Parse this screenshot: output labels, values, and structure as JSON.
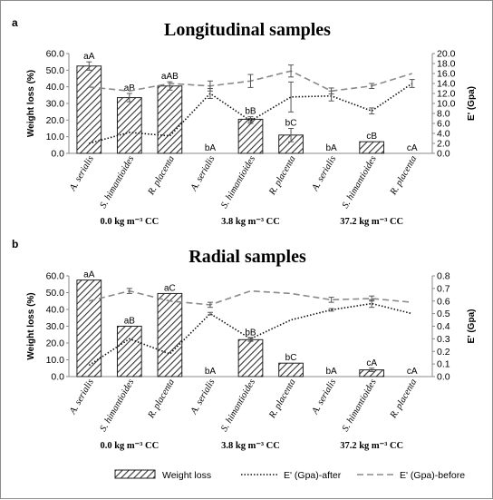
{
  "chart_data": [
    {
      "type": "bar",
      "panel_label": "a",
      "title": "Longitudinal samples",
      "ylabel": "Weight loss (%)",
      "y2label": "E' (Gpa)",
      "ylim": [
        0,
        60
      ],
      "yticks": [
        "0.0",
        "10.0",
        "20.0",
        "30.0",
        "40.0",
        "50.0",
        "60.0"
      ],
      "y2lim": [
        0,
        20
      ],
      "y2ticks": [
        "0.0",
        "2.0",
        "4.0",
        "6.0",
        "8.0",
        "10.0",
        "12.0",
        "14.0",
        "16.0",
        "18.0",
        "20.0"
      ],
      "categories": [
        "A. serialis",
        "S. himantioides",
        "R. placenta",
        "A. serialis",
        "S. himantioides",
        "R. placenta",
        "A. serialis",
        "S. himantioides",
        "R. placenta"
      ],
      "groups": [
        "0.0 kg m⁻³ CC",
        "3.8 kg m⁻³  CC",
        "37.2 kg m⁻³ CC"
      ],
      "series": [
        {
          "name": "Weight loss",
          "kind": "bar",
          "axis": "left",
          "values": [
            52.5,
            33.5,
            40.5,
            0,
            20.5,
            11,
            0,
            7,
            0
          ],
          "errors": [
            2.5,
            2.5,
            2.5,
            0,
            1.5,
            4,
            0,
            0,
            0
          ]
        },
        {
          "name": "E' (Gpa)-after",
          "kind": "line",
          "style": "dotted",
          "axis": "right",
          "values": [
            2,
            4.2,
            3.5,
            12,
            6.5,
            11.3,
            11.5,
            8.5,
            14
          ],
          "errors": [
            0,
            0,
            0,
            1,
            0.5,
            3,
            1,
            0.6,
            0.8
          ]
        },
        {
          "name": "E' (Gpa)-before",
          "kind": "line",
          "style": "dashed",
          "axis": "right",
          "values": [
            13.3,
            12.5,
            14,
            13.5,
            14.5,
            16.5,
            12.5,
            13.5,
            16
          ],
          "errors": [
            0,
            0,
            0,
            1,
            1.3,
            1.2,
            0.6,
            0.5,
            0
          ]
        }
      ],
      "bar_labels": [
        "aA",
        "aB",
        "aAB",
        "bA",
        "bB",
        "bC",
        "bA",
        "cB",
        "cA"
      ]
    },
    {
      "type": "bar",
      "panel_label": "b",
      "title": "Radial samples",
      "ylabel": "Weight loss (%)",
      "y2label": "E' (Gpa)",
      "ylim": [
        0,
        60
      ],
      "yticks": [
        "0.0",
        "10.0",
        "20.0",
        "30.0",
        "40.0",
        "50.0",
        "60.0"
      ],
      "y2lim": [
        0,
        0.8
      ],
      "y2ticks": [
        "0.0",
        "0.1",
        "0.2",
        "0.3",
        "0.4",
        "0.5",
        "0.6",
        "0.7",
        "0.8"
      ],
      "categories": [
        "A. serialis",
        "S. himantioides",
        "R. placenta",
        "A. serialis",
        "S. himantioides",
        "R. placenta",
        "A. serialis",
        "S. himantioides",
        "R. placenta"
      ],
      "groups": [
        "0.0 kg m⁻³ CC",
        "3.8 kg m⁻³  CC",
        "37.2 kg m⁻³ CC"
      ],
      "series": [
        {
          "name": "Weight loss",
          "kind": "bar",
          "axis": "left",
          "values": [
            57.5,
            30,
            49.5,
            0,
            22,
            8,
            0,
            4,
            0
          ],
          "errors": [
            0,
            0,
            0,
            0,
            1,
            0,
            0,
            1,
            0
          ]
        },
        {
          "name": "E' (Gpa)-after",
          "kind": "line",
          "style": "dotted",
          "axis": "right",
          "values": [
            0.09,
            0.3,
            0.18,
            0.5,
            0.3,
            0.45,
            0.53,
            0.58,
            0.5
          ],
          "errors": [
            0,
            0,
            0,
            0.01,
            0.01,
            0,
            0.01,
            0.03,
            0
          ]
        },
        {
          "name": "E' (Gpa)-before",
          "kind": "line",
          "style": "dashed",
          "axis": "right",
          "values": [
            0.6,
            0.68,
            0.6,
            0.57,
            0.68,
            0.66,
            0.61,
            0.62,
            0.59
          ],
          "errors": [
            0,
            0.02,
            0,
            0.02,
            0,
            0,
            0.02,
            0.02,
            0
          ]
        }
      ],
      "bar_labels": [
        "aA",
        "aB",
        "aC",
        "bA",
        "bB",
        "bC",
        "bA",
        "cA",
        "cA"
      ]
    }
  ],
  "legend": {
    "items": [
      "Weight loss",
      "E' (Gpa)-after",
      "E' (Gpa)-before"
    ],
    "placement": "bottom"
  }
}
